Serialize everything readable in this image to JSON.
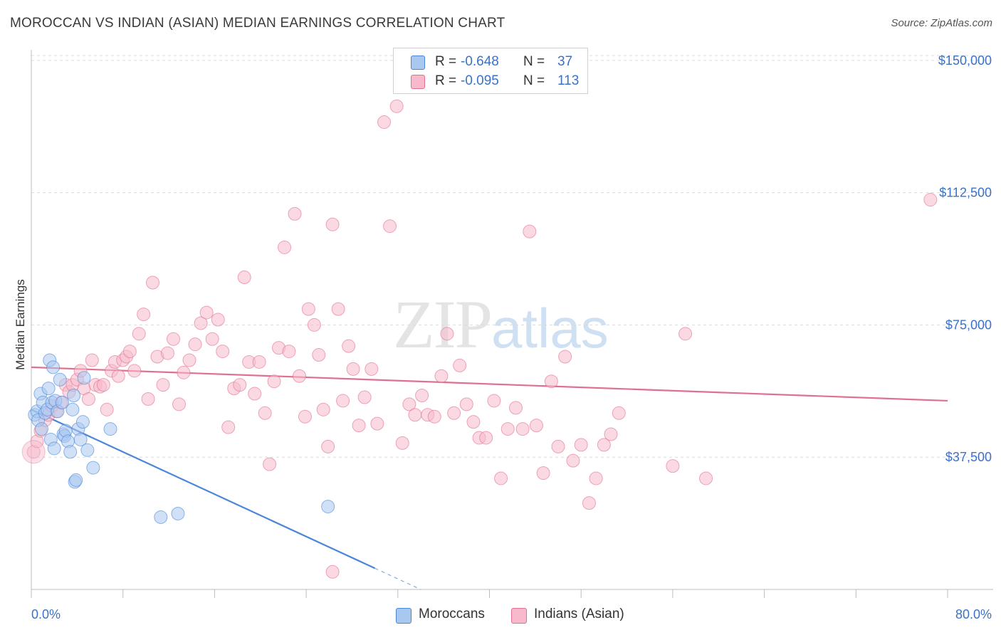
{
  "title": "MOROCCAN VS INDIAN (ASIAN) MEDIAN EARNINGS CORRELATION CHART",
  "source": "Source: ZipAtlas.com",
  "watermark": {
    "zip": "ZIP",
    "atlas": "atlas"
  },
  "legend": [
    {
      "swatch_color": "#a9c8f0",
      "r_label": "R =",
      "r_value": "-0.648",
      "n_label": "N =",
      "n_value": "37"
    },
    {
      "swatch_color": "#f7b9cb",
      "r_label": "R =",
      "r_value": "-0.095",
      "n_label": "N =",
      "n_value": "113"
    }
  ],
  "bottom_legend": [
    {
      "label": "Moroccans",
      "swatch_color": "#a9c8f0"
    },
    {
      "label": "Indians (Asian)",
      "swatch_color": "#f7b9cb"
    }
  ],
  "chart_data": {
    "type": "scatter",
    "title": "MOROCCAN VS INDIAN (ASIAN) MEDIAN EARNINGS CORRELATION CHART",
    "xlabel": "",
    "ylabel": "Median Earnings",
    "xlim": [
      0,
      80
    ],
    "ylim": [
      0,
      153000
    ],
    "x_tick_labels": [
      "0.0%",
      "80.0%"
    ],
    "y_ticks": [
      37500,
      75000,
      112500,
      150000
    ],
    "y_tick_labels": [
      "$37,500",
      "$75,000",
      "$112,500",
      "$150,000"
    ],
    "grid": true,
    "series": [
      {
        "name": "Moroccans",
        "color": "#4a86d8",
        "fill": "#a9c8f0",
        "trend": {
          "x0": 0,
          "y0": 51000,
          "x1": 30,
          "y1": 6000,
          "dash_to_x": 34
        },
        "points": [
          [
            0.3,
            49500
          ],
          [
            0.5,
            50500
          ],
          [
            0.6,
            48000
          ],
          [
            0.8,
            55500
          ],
          [
            0.9,
            45500
          ],
          [
            1.0,
            53000
          ],
          [
            1.2,
            50000
          ],
          [
            1.4,
            51000
          ],
          [
            1.5,
            57000
          ],
          [
            1.6,
            65000
          ],
          [
            1.7,
            42500
          ],
          [
            1.8,
            53000
          ],
          [
            1.9,
            63000
          ],
          [
            2.0,
            40000
          ],
          [
            2.1,
            53500
          ],
          [
            2.3,
            50500
          ],
          [
            2.5,
            59500
          ],
          [
            2.7,
            53000
          ],
          [
            2.8,
            44000
          ],
          [
            2.9,
            43500
          ],
          [
            3.0,
            45000
          ],
          [
            3.2,
            42000
          ],
          [
            3.4,
            39000
          ],
          [
            3.6,
            51000
          ],
          [
            3.7,
            55000
          ],
          [
            3.8,
            30500
          ],
          [
            3.9,
            31000
          ],
          [
            4.1,
            45500
          ],
          [
            4.3,
            42500
          ],
          [
            4.5,
            47500
          ],
          [
            4.6,
            60000
          ],
          [
            4.9,
            39500
          ],
          [
            5.4,
            34500
          ],
          [
            6.9,
            45500
          ],
          [
            11.3,
            20500
          ],
          [
            12.8,
            21500
          ],
          [
            25.9,
            23500
          ]
        ]
      },
      {
        "name": "Indians (Asian)",
        "color": "#e0708f",
        "fill": "#f7b9cb",
        "trend": {
          "x0": 0,
          "y0": 63000,
          "x1": 80,
          "y1": 53500
        },
        "points": [
          [
            0.2,
            39000
          ],
          [
            0.5,
            42000
          ],
          [
            0.8,
            45000
          ],
          [
            1.2,
            48000
          ],
          [
            1.5,
            49500
          ],
          [
            1.8,
            52000
          ],
          [
            2.2,
            50500
          ],
          [
            2.6,
            53000
          ],
          [
            3.0,
            58000
          ],
          [
            3.3,
            56000
          ],
          [
            3.6,
            58000
          ],
          [
            4.0,
            59500
          ],
          [
            4.3,
            62000
          ],
          [
            4.6,
            57000
          ],
          [
            5.0,
            54000
          ],
          [
            5.3,
            65000
          ],
          [
            5.6,
            58000
          ],
          [
            6.0,
            57500
          ],
          [
            6.3,
            58000
          ],
          [
            6.6,
            51000
          ],
          [
            7.0,
            62000
          ],
          [
            7.3,
            64500
          ],
          [
            7.6,
            60500
          ],
          [
            8.0,
            65000
          ],
          [
            8.3,
            66000
          ],
          [
            8.6,
            67500
          ],
          [
            9.0,
            62000
          ],
          [
            9.4,
            72500
          ],
          [
            9.8,
            78000
          ],
          [
            10.2,
            54000
          ],
          [
            10.6,
            87000
          ],
          [
            11.0,
            66000
          ],
          [
            11.5,
            58000
          ],
          [
            11.9,
            67000
          ],
          [
            12.4,
            71000
          ],
          [
            12.9,
            52500
          ],
          [
            13.3,
            61500
          ],
          [
            13.8,
            65000
          ],
          [
            14.3,
            69500
          ],
          [
            14.8,
            75500
          ],
          [
            15.3,
            78500
          ],
          [
            15.8,
            71000
          ],
          [
            16.3,
            76500
          ],
          [
            16.7,
            67500
          ],
          [
            17.2,
            46000
          ],
          [
            17.7,
            57000
          ],
          [
            18.2,
            58000
          ],
          [
            18.6,
            88500
          ],
          [
            19.0,
            64500
          ],
          [
            19.5,
            55500
          ],
          [
            19.9,
            64500
          ],
          [
            20.4,
            50000
          ],
          [
            20.8,
            35500
          ],
          [
            21.2,
            59000
          ],
          [
            21.6,
            68500
          ],
          [
            22.1,
            97000
          ],
          [
            22.5,
            67500
          ],
          [
            23.0,
            106500
          ],
          [
            23.4,
            60500
          ],
          [
            23.9,
            49000
          ],
          [
            24.2,
            79500
          ],
          [
            24.7,
            75000
          ],
          [
            25.1,
            66500
          ],
          [
            25.5,
            51000
          ],
          [
            25.9,
            40500
          ],
          [
            26.3,
            103500
          ],
          [
            26.8,
            79500
          ],
          [
            27.2,
            53500
          ],
          [
            27.7,
            69000
          ],
          [
            28.1,
            62500
          ],
          [
            28.6,
            46500
          ],
          [
            29.1,
            54500
          ],
          [
            29.7,
            62500
          ],
          [
            30.2,
            47000
          ],
          [
            30.8,
            132500
          ],
          [
            31.3,
            103000
          ],
          [
            31.9,
            137000
          ],
          [
            32.4,
            41500
          ],
          [
            33.0,
            52500
          ],
          [
            33.5,
            49500
          ],
          [
            34.1,
            55000
          ],
          [
            34.6,
            49500
          ],
          [
            35.2,
            49000
          ],
          [
            35.8,
            60500
          ],
          [
            36.3,
            72500
          ],
          [
            36.9,
            50000
          ],
          [
            37.4,
            63500
          ],
          [
            38.0,
            52500
          ],
          [
            38.6,
            47500
          ],
          [
            39.1,
            43000
          ],
          [
            39.7,
            43000
          ],
          [
            40.4,
            53500
          ],
          [
            41.0,
            31500
          ],
          [
            41.6,
            45500
          ],
          [
            42.3,
            51500
          ],
          [
            42.9,
            45500
          ],
          [
            43.5,
            101500
          ],
          [
            44.1,
            46500
          ],
          [
            44.7,
            33000
          ],
          [
            45.4,
            59000
          ],
          [
            46.0,
            40500
          ],
          [
            46.6,
            66000
          ],
          [
            47.3,
            36500
          ],
          [
            48.0,
            41000
          ],
          [
            48.7,
            24500
          ],
          [
            49.3,
            31500
          ],
          [
            50.0,
            41000
          ],
          [
            50.6,
            44000
          ],
          [
            51.3,
            50000
          ],
          [
            56.0,
            35000
          ],
          [
            57.1,
            72500
          ],
          [
            58.9,
            31500
          ],
          [
            26.3,
            5000
          ],
          [
            78.5,
            110500
          ]
        ]
      }
    ]
  }
}
